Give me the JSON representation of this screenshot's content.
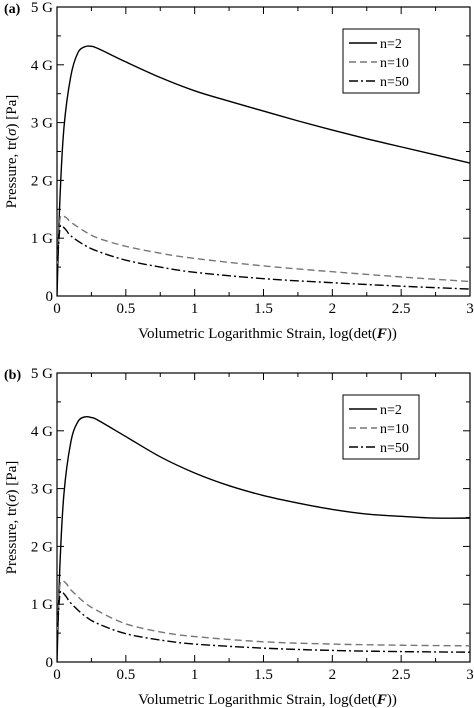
{
  "chart_data": [
    {
      "type": "line",
      "panel_label": "(a)",
      "xlabel_prefix": "Volumetric Logarithmic Strain, log(det(",
      "xlabel_symbol": "F",
      "xlabel_suffix": "))",
      "ylabel_prefix": "Pressure, tr(",
      "ylabel_symbol": "σ",
      "ylabel_suffix": ") [Pa]",
      "xlim": [
        0,
        3
      ],
      "ylim": [
        0,
        5
      ],
      "x_ticks": [
        0,
        0.5,
        1,
        1.5,
        2,
        2.5,
        3
      ],
      "x_tick_labels": [
        "0",
        "0.5",
        "1",
        "1.5",
        "2",
        "2.5",
        "3"
      ],
      "y_ticks": [
        0,
        1,
        2,
        3,
        4,
        5
      ],
      "y_tick_labels": [
        "0",
        "1 G",
        "2 G",
        "3 G",
        "4 G",
        "5 G"
      ],
      "legend_position": "top-right",
      "grid": false,
      "series": [
        {
          "name": "n=2",
          "style": "solid",
          "color": "#000000",
          "x": [
            0,
            0.02,
            0.05,
            0.1,
            0.15,
            0.2,
            0.25,
            0.3,
            0.5,
            0.75,
            1,
            1.25,
            1.5,
            1.75,
            2,
            2.25,
            2.5,
            2.75,
            3
          ],
          "y": [
            0,
            1.6,
            2.9,
            3.8,
            4.2,
            4.31,
            4.32,
            4.28,
            4.05,
            3.78,
            3.55,
            3.37,
            3.2,
            3.03,
            2.87,
            2.72,
            2.58,
            2.44,
            2.3
          ]
        },
        {
          "name": "n=10",
          "style": "dashed",
          "color": "#777777",
          "x": [
            0,
            0.02,
            0.04,
            0.07,
            0.1,
            0.2,
            0.3,
            0.5,
            0.75,
            1,
            1.5,
            2,
            2.5,
            3
          ],
          "y": [
            0.5,
            1.3,
            1.38,
            1.35,
            1.28,
            1.12,
            1.0,
            0.86,
            0.74,
            0.65,
            0.52,
            0.42,
            0.33,
            0.25
          ]
        },
        {
          "name": "n=50",
          "style": "dashdot",
          "color": "#000000",
          "x": [
            0,
            0.02,
            0.04,
            0.07,
            0.1,
            0.2,
            0.3,
            0.5,
            0.75,
            1,
            1.5,
            2,
            2.5,
            3
          ],
          "y": [
            0.4,
            1.15,
            1.2,
            1.13,
            1.04,
            0.88,
            0.77,
            0.62,
            0.5,
            0.41,
            0.3,
            0.23,
            0.17,
            0.12
          ]
        }
      ]
    },
    {
      "type": "line",
      "panel_label": "(b)",
      "xlabel_prefix": "Volumetric Logarithmic Strain, log(det(",
      "xlabel_symbol": "F",
      "xlabel_suffix": "))",
      "ylabel_prefix": "Pressure, tr(",
      "ylabel_symbol": "σ",
      "ylabel_suffix": ") [Pa]",
      "xlim": [
        0,
        3
      ],
      "ylim": [
        0,
        5
      ],
      "x_ticks": [
        0,
        0.5,
        1,
        1.5,
        2,
        2.5,
        3
      ],
      "x_tick_labels": [
        "0",
        "0.5",
        "1",
        "1.5",
        "2",
        "2.5",
        "3"
      ],
      "y_ticks": [
        0,
        1,
        2,
        3,
        4,
        5
      ],
      "y_tick_labels": [
        "0",
        "1 G",
        "2 G",
        "3 G",
        "4 G",
        "5 G"
      ],
      "legend_position": "top-right",
      "grid": false,
      "series": [
        {
          "name": "n=2",
          "style": "solid",
          "color": "#000000",
          "x": [
            0,
            0.02,
            0.05,
            0.1,
            0.15,
            0.2,
            0.25,
            0.3,
            0.5,
            0.75,
            1,
            1.25,
            1.5,
            1.75,
            2,
            2.25,
            2.5,
            2.75,
            3
          ],
          "y": [
            0,
            1.6,
            2.9,
            3.8,
            4.15,
            4.24,
            4.23,
            4.18,
            3.9,
            3.55,
            3.27,
            3.05,
            2.88,
            2.75,
            2.64,
            2.56,
            2.52,
            2.49,
            2.49
          ]
        },
        {
          "name": "n=10",
          "style": "dashed",
          "color": "#777777",
          "x": [
            0,
            0.02,
            0.04,
            0.07,
            0.1,
            0.2,
            0.3,
            0.5,
            0.75,
            1,
            1.5,
            2,
            2.5,
            3
          ],
          "y": [
            0.5,
            1.3,
            1.4,
            1.35,
            1.25,
            1.03,
            0.88,
            0.66,
            0.52,
            0.44,
            0.35,
            0.31,
            0.29,
            0.28
          ]
        },
        {
          "name": "n=50",
          "style": "dashdot",
          "color": "#000000",
          "x": [
            0,
            0.02,
            0.04,
            0.07,
            0.1,
            0.2,
            0.3,
            0.5,
            0.75,
            1,
            1.5,
            2,
            2.5,
            3
          ],
          "y": [
            0.4,
            1.15,
            1.2,
            1.12,
            1.02,
            0.8,
            0.66,
            0.49,
            0.38,
            0.31,
            0.24,
            0.2,
            0.18,
            0.17
          ]
        }
      ]
    }
  ]
}
